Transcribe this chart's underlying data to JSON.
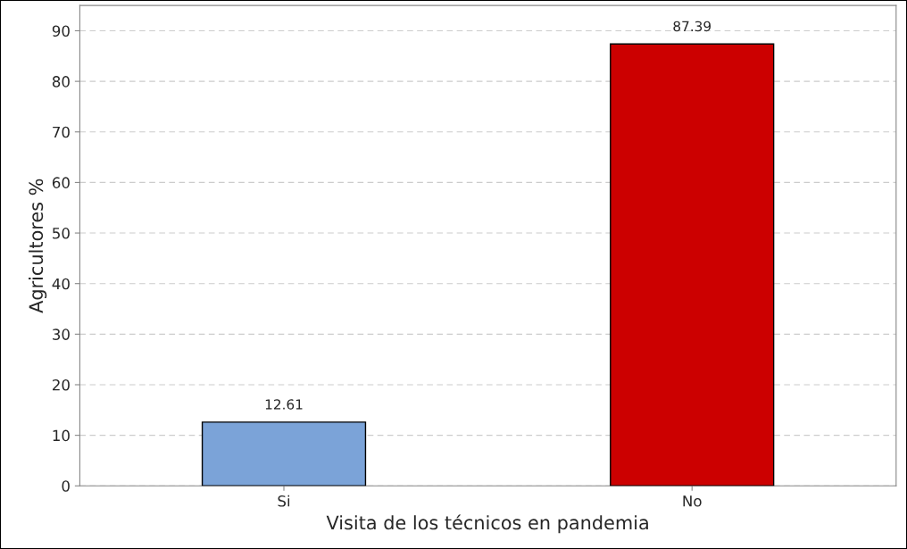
{
  "chart_data": {
    "type": "bar",
    "xlabel": "Visita de los técnicos en pandemia",
    "ylabel": "Agricultores %",
    "categories": [
      "Si",
      "No"
    ],
    "values": [
      12.61,
      87.39
    ],
    "colors": [
      "#7ba3d8",
      "#cc0000"
    ],
    "ylim": [
      0,
      95
    ],
    "yticks": [
      0,
      10,
      20,
      30,
      40,
      50,
      60,
      70,
      80,
      90
    ],
    "grid": "y",
    "data_labels": true
  }
}
